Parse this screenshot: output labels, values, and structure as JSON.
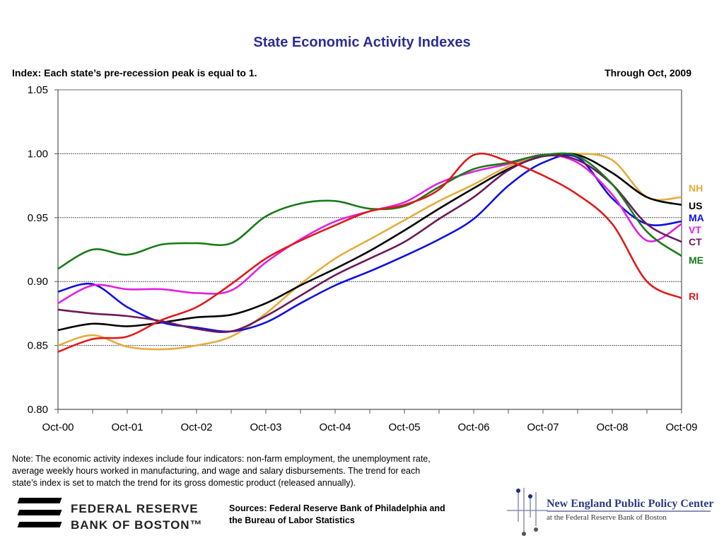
{
  "header": {
    "title": "State Economic Activity Indexes",
    "subtitle": "Index: Each state’s pre-recession peak  is equal to 1.",
    "through": "Through Oct, 2009"
  },
  "footer": {
    "note_lines": [
      "Note: The economic activity indexes include four indicators: non-farm employment, the unemployment rate,",
      "average weekly hours worked in manufacturing, and wage and salary disbursements.  The trend for each",
      "state’s index is set to match the trend for its gross domestic product (released annually)."
    ],
    "sources_line1": "Sources: Federal Reserve Bank of Philadelphia and",
    "sources_line2": "the Bureau of Labor Statistics",
    "fed_logo_line1": "FEDERAL RESERVE",
    "fed_logo_line2": "BANK OF BOSTON™",
    "nepp_name": "New England Public Policy Center",
    "nepp_sub": "at the Federal Reserve Bank of Boston"
  },
  "chart_data": {
    "type": "line",
    "title": "State Economic Activity Indexes",
    "xlabel": "",
    "ylabel": "",
    "ylim": [
      0.8,
      1.05
    ],
    "yticks": [
      "1.05",
      "1.00",
      "0.95",
      "0.90",
      "0.85",
      "0.80"
    ],
    "ytick_values": [
      1.05,
      1.0,
      0.95,
      0.9,
      0.85,
      0.8
    ],
    "grid": "horizontal-dotted",
    "legend": "right",
    "x_tick_labels": [
      "Oct-00",
      "Oct-01",
      "Oct-02",
      "Oct-03",
      "Oct-04",
      "Oct-05",
      "Oct-06",
      "Oct-07",
      "Oct-08",
      "Oct-09"
    ],
    "x": [
      "Oct-00",
      "Apr-01",
      "Oct-01",
      "Apr-02",
      "Oct-02",
      "Apr-03",
      "Oct-03",
      "Apr-04",
      "Oct-04",
      "Apr-05",
      "Oct-05",
      "Apr-06",
      "Oct-06",
      "Apr-07",
      "Oct-07",
      "Apr-08",
      "Oct-08",
      "Apr-09",
      "Oct-09"
    ],
    "series": [
      {
        "name": "NH",
        "color": "#e3ac3b",
        "values": [
          0.85,
          0.858,
          0.849,
          0.847,
          0.85,
          0.857,
          0.875,
          0.898,
          0.918,
          0.933,
          0.948,
          0.963,
          0.976,
          0.99,
          0.998,
          1.0,
          0.995,
          0.966,
          0.966
        ]
      },
      {
        "name": "US",
        "color": "#000000",
        "values": [
          0.862,
          0.867,
          0.865,
          0.868,
          0.872,
          0.874,
          0.883,
          0.897,
          0.91,
          0.924,
          0.94,
          0.957,
          0.973,
          0.988,
          0.998,
          0.999,
          0.985,
          0.966,
          0.96
        ]
      },
      {
        "name": "MA",
        "color": "#1010e0",
        "values": [
          0.892,
          0.898,
          0.88,
          0.868,
          0.864,
          0.861,
          0.868,
          0.883,
          0.897,
          0.908,
          0.92,
          0.933,
          0.949,
          0.975,
          0.993,
          0.997,
          0.965,
          0.945,
          0.947
        ]
      },
      {
        "name": "VT",
        "color": "#e020e0",
        "values": [
          0.883,
          0.897,
          0.894,
          0.894,
          0.891,
          0.893,
          0.915,
          0.933,
          0.947,
          0.955,
          0.962,
          0.977,
          0.986,
          0.992,
          0.999,
          0.993,
          0.968,
          0.932,
          0.945
        ]
      },
      {
        "name": "CT",
        "color": "#6b1a5a",
        "values": [
          0.878,
          0.875,
          0.873,
          0.869,
          0.863,
          0.861,
          0.873,
          0.889,
          0.905,
          0.918,
          0.931,
          0.949,
          0.966,
          0.987,
          0.998,
          0.995,
          0.976,
          0.945,
          0.931
        ]
      },
      {
        "name": "ME",
        "color": "#1a7a1a",
        "values": [
          0.91,
          0.925,
          0.921,
          0.929,
          0.93,
          0.93,
          0.951,
          0.961,
          0.963,
          0.957,
          0.959,
          0.974,
          0.988,
          0.993,
          0.999,
          0.998,
          0.976,
          0.939,
          0.92
        ]
      },
      {
        "name": "RI",
        "color": "#e01a1a",
        "values": [
          0.845,
          0.855,
          0.857,
          0.87,
          0.88,
          0.898,
          0.918,
          0.932,
          0.944,
          0.955,
          0.96,
          0.972,
          0.999,
          0.994,
          0.983,
          0.968,
          0.945,
          0.9,
          0.887
        ]
      }
    ]
  }
}
